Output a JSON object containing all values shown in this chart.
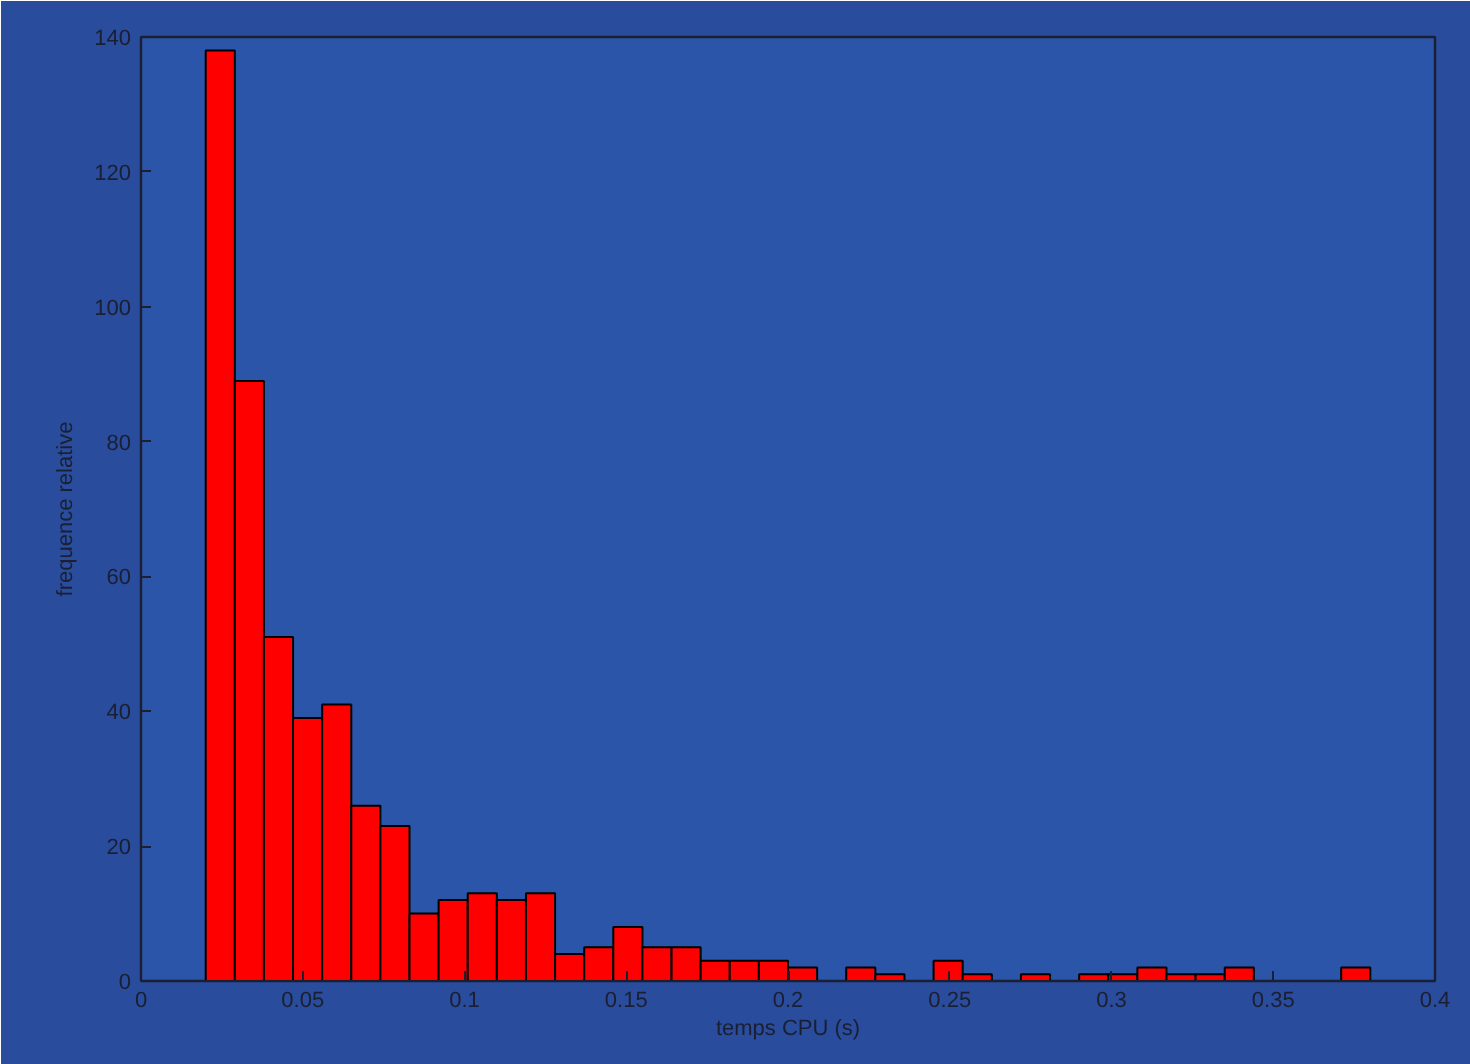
{
  "chart_data": {
    "type": "histogram",
    "xlabel": "temps CPU (s)",
    "ylabel": "frequence relative",
    "bins": [
      0.02,
      0.029,
      0.038,
      0.047,
      0.056,
      0.065,
      0.074,
      0.083,
      0.092,
      0.101,
      0.11,
      0.119,
      0.128,
      0.137,
      0.146,
      0.155,
      0.164,
      0.173,
      0.182,
      0.191,
      0.2,
      0.209,
      0.218,
      0.227,
      0.236,
      0.245,
      0.254,
      0.263,
      0.272,
      0.281,
      0.29,
      0.299,
      0.308,
      0.317,
      0.326,
      0.335,
      0.344,
      0.353,
      0.362,
      0.371,
      0.38
    ],
    "values": [
      138,
      89,
      51,
      39,
      41,
      26,
      23,
      10,
      12,
      13,
      12,
      13,
      4,
      5,
      8,
      5,
      5,
      3,
      3,
      3,
      2,
      0,
      2,
      1,
      0,
      3,
      1,
      0,
      1,
      0,
      1,
      1,
      2,
      1,
      1,
      2,
      0,
      0,
      0,
      2
    ],
    "color": "#ff0000",
    "xlim": [
      0,
      0.4
    ],
    "xticks": [
      0,
      0.05,
      0.1,
      0.15,
      0.2,
      0.25,
      0.3,
      0.35,
      0.4
    ],
    "ylim": [
      0,
      140
    ],
    "yticks": [
      0,
      20,
      40,
      60,
      80,
      100,
      120,
      140
    ],
    "grid": false
  }
}
